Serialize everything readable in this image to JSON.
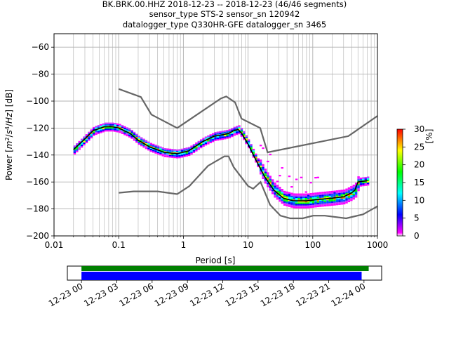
{
  "chart_data": {
    "type": "heatmap",
    "title_lines": [
      "BK.BRK.00.HHZ   2018-12-23 -- 2018-12-23  (46/46 segments)",
      "sensor_type STS-2 sensor_sn 120942",
      "datalogger_type Q330HR-GFE datalogger_sn 3465"
    ],
    "xlabel": "Period [s]",
    "ylabel_prefix": "Power [",
    "ylabel_suffix": "] [dB]",
    "x_scale": "log",
    "xlim": [
      0.01,
      1000
    ],
    "ylim": [
      -200,
      -50
    ],
    "x_ticks": [
      0.01,
      0.1,
      1,
      10,
      100,
      1000
    ],
    "x_tick_labels": [
      "0.01",
      "0.1",
      "1",
      "10",
      "100",
      "1000"
    ],
    "y_ticks": [
      -200,
      -180,
      -160,
      -140,
      -120,
      -100,
      -80,
      -60
    ],
    "y_tick_labels": [
      "−200",
      "−180",
      "−160",
      "−140",
      "−120",
      "−100",
      "−80",
      "−60"
    ],
    "grid": true,
    "colorbar": {
      "label": "[%]",
      "range": [
        0,
        30
      ],
      "ticks": [
        0,
        5,
        10,
        15,
        20,
        25,
        30
      ],
      "tick_labels": [
        "0",
        "5",
        "10",
        "15",
        "20",
        "25",
        "30"
      ]
    },
    "mean_curve": [
      [
        0.02,
        -136
      ],
      [
        0.03,
        -128
      ],
      [
        0.04,
        -122
      ],
      [
        0.06,
        -119
      ],
      [
        0.08,
        -119
      ],
      [
        0.1,
        -120
      ],
      [
        0.15,
        -124
      ],
      [
        0.2,
        -129
      ],
      [
        0.3,
        -134
      ],
      [
        0.5,
        -138
      ],
      [
        0.8,
        -139
      ],
      [
        1.2,
        -137
      ],
      [
        2,
        -130
      ],
      [
        3,
        -126
      ],
      [
        4,
        -125
      ],
      [
        5,
        -124
      ],
      [
        6,
        -122
      ],
      [
        7,
        -121
      ],
      [
        8,
        -124
      ],
      [
        10,
        -132
      ],
      [
        13,
        -143
      ],
      [
        18,
        -156
      ],
      [
        25,
        -166
      ],
      [
        35,
        -172
      ],
      [
        50,
        -174
      ],
      [
        80,
        -174
      ],
      [
        120,
        -173
      ],
      [
        200,
        -172
      ],
      [
        300,
        -171
      ],
      [
        400,
        -168
      ],
      [
        450,
        -166
      ],
      [
        500,
        -160
      ],
      [
        700,
        -159
      ]
    ],
    "nlnm": [
      [
        0.1,
        -168
      ],
      [
        0.17,
        -167
      ],
      [
        0.4,
        -167
      ],
      [
        0.8,
        -169
      ],
      [
        1.24,
        -163
      ],
      [
        2.4,
        -148
      ],
      [
        4.3,
        -141
      ],
      [
        5,
        -141
      ],
      [
        6,
        -149
      ],
      [
        10,
        -163
      ],
      [
        12,
        -165
      ],
      [
        15.6,
        -160
      ],
      [
        21.9,
        -177
      ],
      [
        31.6,
        -185
      ],
      [
        45,
        -187
      ],
      [
        70,
        -187
      ],
      [
        101,
        -185
      ],
      [
        154,
        -185
      ],
      [
        328,
        -187
      ],
      [
        600,
        -184
      ],
      [
        1000,
        -178
      ]
    ],
    "nhnm": [
      [
        0.1,
        -91
      ],
      [
        0.22,
        -97
      ],
      [
        0.32,
        -110
      ],
      [
        0.8,
        -120
      ],
      [
        3.8,
        -98
      ],
      [
        4.6,
        -96.5
      ],
      [
        6.3,
        -101
      ],
      [
        7.9,
        -113
      ],
      [
        15.4,
        -120
      ],
      [
        20,
        -138
      ],
      [
        354.8,
        -126
      ],
      [
        1000,
        -111
      ]
    ]
  },
  "coverage": {
    "tick_labels": [
      "12-23 00",
      "12-23 03",
      "12-23 06",
      "12-23 09",
      "12-23 12",
      "12-23 15",
      "12-23 18",
      "12-23 21",
      "12-24 00"
    ],
    "range_hours": [
      -1.2,
      25.5
    ],
    "green_bar_hours": [
      0,
      24.4
    ],
    "blue_bar_hours": [
      0,
      23.8
    ],
    "green_color": "#008000",
    "blue_color": "#0000ff"
  },
  "colors": {
    "mean": "#000000",
    "noise_model": "#666666",
    "grid": "#b0b0b0"
  }
}
